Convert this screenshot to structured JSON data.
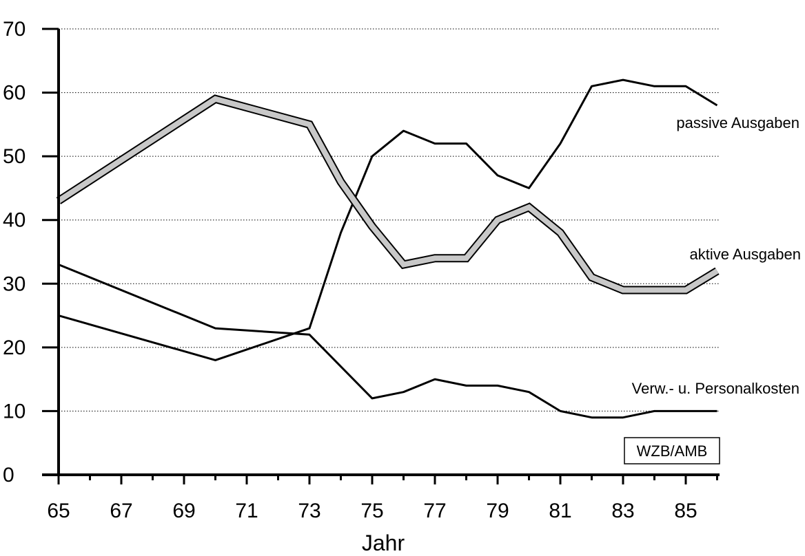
{
  "chart_data": {
    "type": "line",
    "xlabel": "Jahr",
    "ylabel": "",
    "xlim": [
      65,
      86
    ],
    "ylim": [
      0,
      70
    ],
    "x_ticks": [
      "65",
      "67",
      "69",
      "71",
      "73",
      "75",
      "77",
      "79",
      "81",
      "83",
      "85"
    ],
    "y_ticks": [
      "0",
      "10",
      "20",
      "30",
      "40",
      "50",
      "60",
      "70"
    ],
    "grid": "horizontal dotted",
    "source_box": "WZB/AMB",
    "series": [
      {
        "name": "passive Ausgaben",
        "style": "thin",
        "x": [
          65,
          70,
          73,
          74,
          75,
          76,
          77,
          78,
          79,
          80,
          81,
          82,
          83,
          84,
          85,
          86
        ],
        "values": [
          25,
          18,
          23,
          38,
          50,
          54,
          52,
          52,
          47,
          45,
          52,
          61,
          62,
          61,
          61,
          58
        ]
      },
      {
        "name": "aktive Ausgaben",
        "style": "band",
        "x": [
          65,
          70,
          73,
          74,
          75,
          76,
          77,
          78,
          79,
          80,
          81,
          82,
          83,
          84,
          85,
          86
        ],
        "values": [
          43,
          59,
          55,
          46,
          39,
          33,
          34,
          34,
          40,
          42,
          38,
          31,
          29,
          29,
          29,
          32
        ]
      },
      {
        "name": "Verw.- u. Personalkosten",
        "style": "thin",
        "x": [
          65,
          70,
          73,
          75,
          76,
          77,
          78,
          79,
          80,
          81,
          82,
          83,
          84,
          85,
          86
        ],
        "values": [
          33,
          23,
          22,
          12,
          13,
          15,
          14,
          14,
          13,
          10,
          9,
          9,
          10,
          10,
          10
        ]
      }
    ],
    "colors": {
      "line": "#000000",
      "band_fill": "#c8c8c8",
      "grid": "#000000"
    }
  }
}
